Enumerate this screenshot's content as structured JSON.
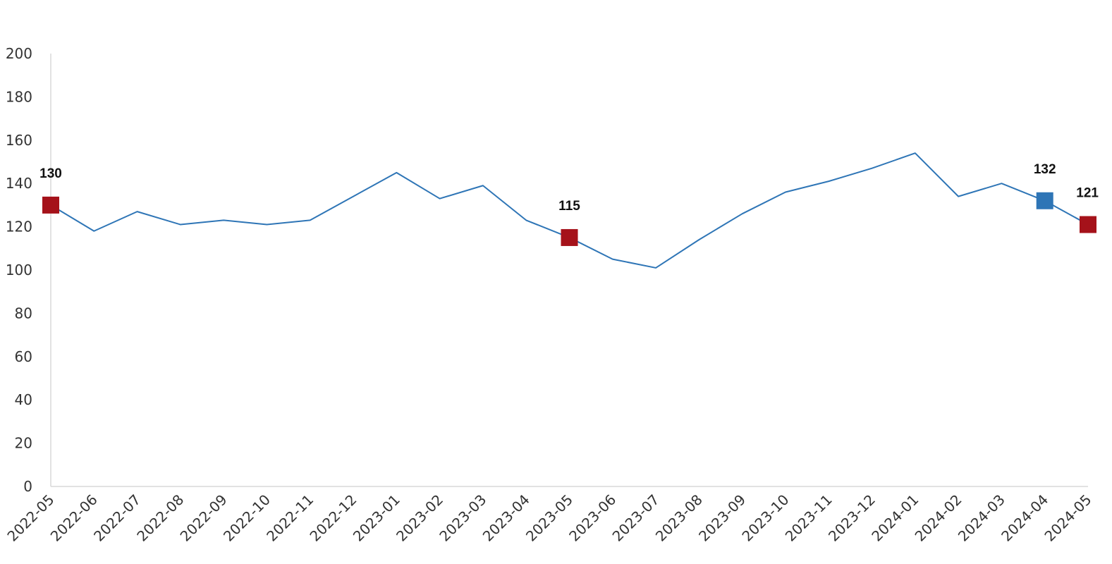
{
  "chart_data": {
    "type": "line",
    "title": "",
    "xlabel": "",
    "ylabel": "",
    "ylim": [
      0,
      200
    ],
    "yticks": [
      0,
      20,
      40,
      60,
      80,
      100,
      120,
      140,
      160,
      180,
      200
    ],
    "grid": false,
    "legend": "none",
    "categories": [
      "2022-05",
      "2022-06",
      "2022-07",
      "2022-08",
      "2022-09",
      "2022-10",
      "2022-11",
      "2022-12",
      "2023-01",
      "2023-02",
      "2023-03",
      "2023-04",
      "2023-05",
      "2023-06",
      "2023-07",
      "2023-08",
      "2023-09",
      "2023-10",
      "2023-11",
      "2023-12",
      "2024-01",
      "2024-02",
      "2024-03",
      "2024-04",
      "2024-05"
    ],
    "series": [
      {
        "values": [
          130,
          118,
          127,
          121,
          123,
          121,
          123,
          134,
          145,
          133,
          139,
          123,
          115,
          105,
          101,
          114,
          126,
          136,
          141,
          147,
          154,
          134,
          140,
          132,
          121
        ],
        "color": "#2e75b6"
      }
    ],
    "highlights": [
      {
        "category": "2022-05",
        "value": 130,
        "label": "130",
        "color": "#a5121a"
      },
      {
        "category": "2023-05",
        "value": 115,
        "label": "115",
        "color": "#a5121a"
      },
      {
        "category": "2024-04",
        "value": 132,
        "label": "132",
        "color": "#2e75b6"
      },
      {
        "category": "2024-05",
        "value": 121,
        "label": "121",
        "color": "#a5121a"
      }
    ],
    "colors": {
      "axis": "#d9d9d9",
      "tick_text": "#333333",
      "label_text": "#111111"
    }
  }
}
